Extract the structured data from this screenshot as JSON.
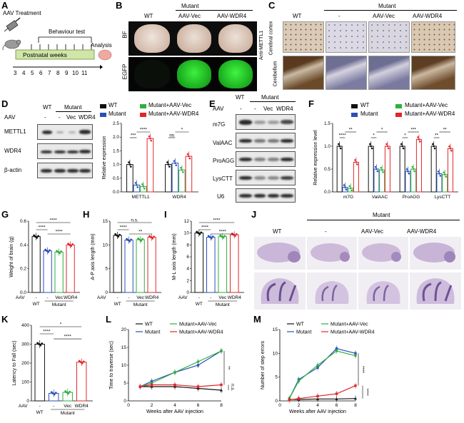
{
  "panel_letters": [
    "A",
    "B",
    "C",
    "D",
    "E",
    "F",
    "G",
    "H",
    "I",
    "J",
    "K",
    "L",
    "M"
  ],
  "panelA": {
    "aav_treatment": "AAV Treatment",
    "behaviour_test": "Behaviour test",
    "postnatal_weeks": "Postnatal weeks",
    "analysis": "Analysis",
    "ticks": [
      "3",
      "4",
      "5",
      "6",
      "7",
      "8",
      "9",
      "10",
      "11"
    ]
  },
  "panelB": {
    "cols": [
      "WT",
      "AAV-Vec",
      "AAV-WDR4"
    ],
    "mutant": "Mutant",
    "rows": [
      "BF",
      "EGFP"
    ]
  },
  "panelC": {
    "cols": [
      "WT",
      "-",
      "AAV-Vec",
      "AAV-WDR4"
    ],
    "mutant": "Mutant",
    "rows": [
      "Cerebral cortex",
      "Cerebellum"
    ],
    "side": "Anti-METTL1"
  },
  "panelD": {
    "wt": "WT",
    "mutant": "Mutant",
    "aav": "AAV",
    "lanes": [
      "-",
      "-",
      "Vec",
      "WDR4"
    ],
    "blots": [
      "METTL1",
      "WDR4",
      "β-actin"
    ]
  },
  "panelE": {
    "wt": "WT",
    "mutant": "Mutant",
    "aav": "AAV",
    "lanes": [
      "-",
      "-",
      "Vec",
      "WDR4"
    ],
    "blots": [
      "m7G",
      "ValAAC",
      "ProAGG",
      "LysCTT",
      "U6"
    ]
  },
  "legend_top": [
    "WT",
    "Mutant+AAV-Vec",
    "Mutant",
    "Mutant+AAV-WDR4"
  ],
  "colors": {
    "wt": "#111111",
    "mutant": "#2b4fb8",
    "vec": "#2fae3f",
    "wdr4": "#e2262a"
  },
  "axis_bottom": {
    "aav": "AAV",
    "wt": "WT",
    "mutant": "Mutant",
    "lanes": [
      "-",
      "-",
      "Vec",
      "WDR4"
    ]
  },
  "panelJ": {
    "wt": "WT",
    "mutant": "Mutant",
    "cols": [
      "WT",
      "-",
      "AAV-Vec",
      "AAV-WDR4"
    ]
  },
  "chart_data": [
    {
      "panel": "D",
      "type": "bar",
      "ylabel": "Relative expression",
      "categories": [
        "METTL1",
        "WDR4"
      ],
      "ylim": [
        0,
        2.5
      ],
      "yticks": [
        "0.0",
        "0.5",
        "1.0",
        "1.5",
        "2.0",
        "2.5"
      ],
      "series": [
        {
          "name": "WT",
          "values": [
            1.0,
            1.0
          ]
        },
        {
          "name": "Mutant",
          "values": [
            0.25,
            1.05
          ]
        },
        {
          "name": "Mutant+AAV-Vec",
          "values": [
            0.2,
            0.8
          ]
        },
        {
          "name": "Mutant+AAV-WDR4",
          "values": [
            1.95,
            1.3
          ]
        }
      ],
      "sig": [
        "***",
        "****",
        "ns",
        "*"
      ]
    },
    {
      "panel": "F",
      "type": "bar",
      "ylabel": "Relative expression level",
      "categories": [
        "m7G",
        "ValAAC",
        "ProAGG",
        "LysCTT"
      ],
      "ylim": [
        0,
        1.5
      ],
      "yticks": [
        "0.0",
        "0.5",
        "1.0",
        "1.5"
      ],
      "series": [
        {
          "name": "WT",
          "values": [
            1.0,
            1.0,
            1.0,
            1.0
          ]
        },
        {
          "name": "Mutant",
          "values": [
            0.1,
            0.5,
            0.45,
            0.4
          ]
        },
        {
          "name": "Mutant+AAV-Vec",
          "values": [
            0.08,
            0.48,
            0.5,
            0.38
          ]
        },
        {
          "name": "Mutant+AAV-WDR4",
          "values": [
            0.65,
            1.0,
            1.15,
            0.95
          ]
        }
      ],
      "sig": [
        "****",
        "**",
        "*",
        "*",
        "*",
        "***",
        "**",
        "**"
      ]
    },
    {
      "panel": "G",
      "type": "bar",
      "ylabel": "Weight of brain (g)",
      "ylim": [
        0,
        0.6
      ],
      "yticks": [
        "0.0",
        "0.2",
        "0.4",
        "0.6"
      ],
      "values": [
        0.47,
        0.35,
        0.34,
        0.4
      ],
      "sig": [
        "****",
        "****",
        "****"
      ]
    },
    {
      "panel": "H",
      "type": "bar",
      "ylabel": "A-P axis length (mm)",
      "ylim": [
        0,
        15
      ],
      "yticks": [
        "0",
        "5",
        "10",
        "15"
      ],
      "values": [
        12.0,
        11.0,
        11.1,
        11.6
      ],
      "sig": [
        "n.s.",
        "****",
        "**"
      ]
    },
    {
      "panel": "I",
      "type": "bar",
      "ylabel": "M-L axis length (mm)",
      "ylim": [
        0,
        12
      ],
      "yticks": [
        "0",
        "2",
        "4",
        "6",
        "8",
        "10",
        "12"
      ],
      "values": [
        10.0,
        9.3,
        9.4,
        9.7
      ],
      "sig": [
        "****",
        "****",
        "****"
      ]
    },
    {
      "panel": "K",
      "type": "bar",
      "ylabel": "Latency to Fall (sec)",
      "ylim": [
        0,
        400
      ],
      "yticks": [
        "0",
        "100",
        "200",
        "300",
        "400"
      ],
      "values": [
        300,
        40,
        45,
        205
      ],
      "sig": [
        "*",
        "****",
        "****"
      ]
    },
    {
      "panel": "L",
      "type": "line",
      "ylabel": "Time to traverse (sec)",
      "xlabel": "Weeks after AAV injection",
      "x": [
        1,
        2,
        4,
        6,
        8
      ],
      "xticks": [
        "0",
        "2",
        "4",
        "6",
        "8"
      ],
      "ylim": [
        0,
        20
      ],
      "yticks": [
        "0",
        "5",
        "10",
        "15",
        "20"
      ],
      "series": [
        {
          "name": "WT",
          "values": [
            4,
            4,
            4,
            3.5,
            3
          ]
        },
        {
          "name": "Mutant",
          "values": [
            4,
            5.5,
            8,
            10,
            14
          ]
        },
        {
          "name": "Mutant+AAV-Vec",
          "values": [
            4,
            5,
            8,
            11,
            14
          ]
        },
        {
          "name": "Mutant+AAV-WDR4",
          "values": [
            4,
            4.5,
            4.5,
            4,
            4.5
          ]
        }
      ],
      "sig": [
        "**",
        "n.s."
      ]
    },
    {
      "panel": "M",
      "type": "line",
      "ylabel": "Number of step errors",
      "xlabel": "Weeks after AAV injection",
      "x": [
        1,
        2,
        4,
        6,
        8
      ],
      "xticks": [
        "0",
        "2",
        "4",
        "6",
        "8"
      ],
      "ylim": [
        0,
        15
      ],
      "yticks": [
        "0",
        "5",
        "10",
        "15"
      ],
      "series": [
        {
          "name": "WT",
          "values": [
            0.3,
            0.3,
            0.4,
            0.4,
            0.5
          ]
        },
        {
          "name": "Mutant",
          "values": [
            0.5,
            4.5,
            7,
            11,
            10
          ]
        },
        {
          "name": "Mutant+AAV-Vec",
          "values": [
            0.5,
            4.2,
            7.5,
            10.5,
            9.5
          ]
        },
        {
          "name": "Mutant+AAV-WDR4",
          "values": [
            0.2,
            0.5,
            1,
            1.5,
            3.2
          ]
        }
      ],
      "sig": [
        "****",
        "****"
      ]
    }
  ]
}
